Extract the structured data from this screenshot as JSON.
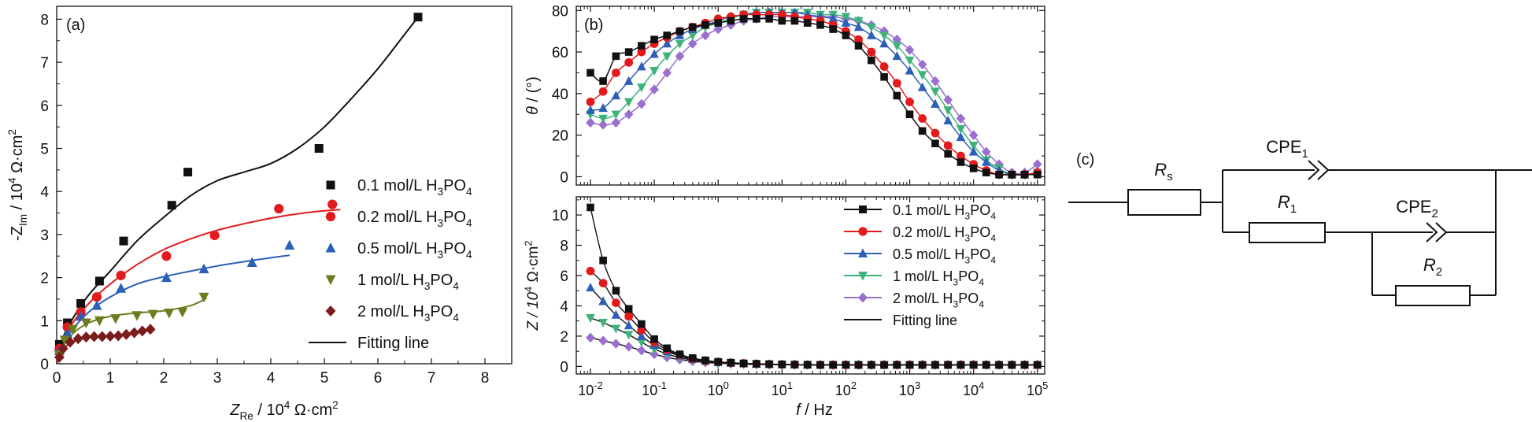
{
  "chart_data": [
    {
      "panel": "a",
      "type": "scatter",
      "panel_label": "(a)",
      "xlabel": "Z_Re / 10^4 Ω·cm^2",
      "ylabel": "-Z_Im / 10^4 Ω·cm^2",
      "xlim": [
        0,
        8.5
      ],
      "ylim": [
        0,
        8.3
      ],
      "xticks": [
        "0",
        "1",
        "2",
        "3",
        "4",
        "5",
        "6",
        "7",
        "8"
      ],
      "yticks": [
        "0",
        "1",
        "2",
        "3",
        "4",
        "5",
        "6",
        "7",
        "8"
      ],
      "series": [
        {
          "name": "0.1 mol/L H3PO4",
          "marker": "square",
          "color": "#111111",
          "x": [
            0.05,
            0.2,
            0.45,
            0.8,
            1.25,
            2.15,
            2.45,
            4.9,
            6.75
          ],
          "y": [
            0.45,
            0.95,
            1.4,
            1.92,
            2.85,
            3.68,
            4.45,
            5.0,
            8.05
          ],
          "fit_x": [
            0,
            0.1,
            0.3,
            0.6,
            1.0,
            1.5,
            2.0,
            2.5,
            3.0,
            3.5,
            4.0,
            4.5,
            5.0,
            5.5,
            6.0,
            6.5,
            6.75
          ],
          "fit_y": [
            0,
            0.55,
            1.05,
            1.6,
            2.15,
            2.85,
            3.4,
            3.9,
            4.25,
            4.45,
            4.65,
            5.0,
            5.5,
            6.15,
            6.85,
            7.65,
            8.05
          ]
        },
        {
          "name": "0.2 mol/L H3PO4",
          "marker": "circle",
          "color": "#e31a1c",
          "x": [
            0.05,
            0.2,
            0.45,
            0.75,
            1.2,
            2.05,
            2.95,
            4.15,
            5.15
          ],
          "y": [
            0.35,
            0.85,
            1.2,
            1.55,
            2.05,
            2.5,
            2.98,
            3.6,
            3.7
          ],
          "fit_x": [
            0,
            0.1,
            0.3,
            0.6,
            1.0,
            1.5,
            2.0,
            2.5,
            3.0,
            3.5,
            4.0,
            4.5,
            5.0,
            5.3
          ],
          "fit_y": [
            0,
            0.5,
            0.95,
            1.4,
            1.85,
            2.3,
            2.65,
            2.9,
            3.1,
            3.25,
            3.38,
            3.48,
            3.55,
            3.58
          ]
        },
        {
          "name": "0.5 mol/L H3PO4",
          "marker": "triangle-up",
          "color": "#2c5fb8",
          "x": [
            0.05,
            0.2,
            0.45,
            0.75,
            1.2,
            2.05,
            2.75,
            3.65,
            4.35
          ],
          "y": [
            0.3,
            0.7,
            1.1,
            1.35,
            1.75,
            2.0,
            2.2,
            2.35,
            2.75
          ],
          "fit_x": [
            0,
            0.1,
            0.3,
            0.6,
            1.0,
            1.5,
            2.0,
            2.5,
            3.0,
            3.5,
            4.0,
            4.35
          ],
          "fit_y": [
            0,
            0.4,
            0.8,
            1.2,
            1.55,
            1.85,
            2.02,
            2.15,
            2.27,
            2.37,
            2.46,
            2.52
          ]
        },
        {
          "name": "1 mol/L H3PO4",
          "marker": "triangle-down",
          "color": "#6b7d1e",
          "x": [
            0.05,
            0.15,
            0.3,
            0.55,
            0.8,
            1.1,
            1.5,
            1.8,
            2.1,
            2.35,
            2.75
          ],
          "y": [
            0.2,
            0.55,
            0.8,
            0.95,
            1.0,
            1.05,
            1.12,
            1.15,
            1.18,
            1.2,
            1.55
          ],
          "fit_x": [
            0,
            0.1,
            0.3,
            0.6,
            1.0,
            1.5,
            2.0,
            2.5,
            2.8
          ],
          "fit_y": [
            0,
            0.35,
            0.7,
            0.95,
            1.1,
            1.18,
            1.23,
            1.35,
            1.52
          ]
        },
        {
          "name": "2 mol/L H3PO4",
          "marker": "diamond",
          "color": "#7b1c1c",
          "x": [
            0.05,
            0.12,
            0.25,
            0.4,
            0.55,
            0.7,
            0.85,
            1.0,
            1.15,
            1.3,
            1.45,
            1.6,
            1.75
          ],
          "y": [
            0.15,
            0.35,
            0.5,
            0.58,
            0.62,
            0.63,
            0.63,
            0.64,
            0.65,
            0.68,
            0.72,
            0.76,
            0.8
          ],
          "fit_x": [
            0,
            0.1,
            0.25,
            0.45,
            0.7,
            1.0,
            1.3,
            1.6,
            1.8
          ],
          "fit_y": [
            0,
            0.3,
            0.48,
            0.58,
            0.62,
            0.64,
            0.67,
            0.74,
            0.8
          ]
        }
      ],
      "legend": [
        "0.1 mol/L H3PO4",
        "0.2 mol/L H3PO4",
        "0.5 mol/L H3PO4",
        "1 mol/L H3PO4",
        "2 mol/L H3PO4",
        "Fitting line"
      ]
    },
    {
      "panel": "b-top",
      "type": "scatter",
      "panel_label": "(b)",
      "xscale": "log",
      "xlim": [
        0.006,
        130000
      ],
      "ylim": [
        -4,
        82
      ],
      "ylabel": "θ / (°)",
      "yticks": [
        "0",
        "20",
        "40",
        "60",
        "80"
      ],
      "f": [
        0.01,
        0.0158,
        0.0251,
        0.0398,
        0.0631,
        0.1,
        0.158,
        0.251,
        0.398,
        0.631,
        1,
        1.58,
        2.51,
        3.98,
        6.31,
        10,
        15.8,
        25.1,
        39.8,
        63.1,
        100,
        158,
        251,
        398,
        631,
        1000,
        1580,
        2510,
        3980,
        6310,
        10000,
        15800,
        25100,
        39800,
        63100,
        100000
      ],
      "series": [
        {
          "name": "0.1 mol/L H3PO4",
          "marker": "square",
          "color": "#111111",
          "values": [
            50,
            46,
            58,
            60,
            63,
            66,
            68,
            70,
            72,
            73,
            74,
            75,
            76,
            76,
            76,
            75,
            75,
            74,
            73,
            71,
            68,
            63,
            56,
            48,
            39,
            30,
            22,
            16,
            11,
            7,
            4,
            2,
            1,
            1,
            1,
            1
          ]
        },
        {
          "name": "0.2 mol/L H3PO4",
          "marker": "circle",
          "color": "#e31a1c",
          "values": [
            36,
            41,
            50,
            55,
            60,
            64,
            67,
            70,
            72,
            74,
            76,
            77,
            78,
            78,
            78,
            78,
            77,
            76,
            75,
            73,
            70,
            66,
            60,
            53,
            45,
            36,
            28,
            21,
            15,
            10,
            6,
            3,
            1,
            1,
            1,
            2
          ]
        },
        {
          "name": "0.5 mol/L H3PO4",
          "marker": "triangle-up",
          "color": "#2c5fb8",
          "values": [
            32,
            33,
            39,
            46,
            53,
            59,
            64,
            68,
            71,
            73,
            75,
            77,
            78,
            79,
            79,
            79,
            79,
            78,
            77,
            76,
            74,
            72,
            68,
            64,
            58,
            51,
            43,
            35,
            27,
            19,
            12,
            7,
            3,
            1,
            1,
            2
          ]
        },
        {
          "name": "1 mol/L H3PO4",
          "marker": "triangle-down",
          "color": "#3db37a",
          "values": [
            30,
            28,
            30,
            36,
            43,
            51,
            58,
            64,
            68,
            72,
            74,
            76,
            78,
            79,
            79,
            79,
            79,
            79,
            78,
            78,
            77,
            75,
            72,
            68,
            63,
            56,
            49,
            41,
            32,
            23,
            15,
            8,
            4,
            1,
            1,
            2
          ]
        },
        {
          "name": "2 mol/L H3PO4",
          "marker": "diamond",
          "color": "#9b6fcf",
          "values": [
            26,
            25,
            26,
            30,
            35,
            42,
            50,
            58,
            64,
            68,
            71,
            73,
            75,
            76,
            77,
            77,
            77,
            77,
            77,
            77,
            76,
            75,
            73,
            70,
            66,
            61,
            54,
            46,
            37,
            28,
            20,
            12,
            6,
            2,
            2,
            6
          ]
        }
      ]
    },
    {
      "panel": "b-bottom",
      "type": "scatter",
      "xscale": "log",
      "xlim": [
        0.006,
        130000
      ],
      "ylim": [
        -0.5,
        11.2
      ],
      "xlabel": "f / Hz",
      "ylabel": "Z / 10^4 Ω·cm^2",
      "yticks": [
        "0",
        "2",
        "4",
        "6",
        "8",
        "10"
      ],
      "xticks": [
        "10^-2",
        "10^-1",
        "10^0",
        "10^1",
        "10^2",
        "10^3",
        "10^4",
        "10^5"
      ],
      "f": [
        0.01,
        0.0158,
        0.0251,
        0.0398,
        0.0631,
        0.1,
        0.158,
        0.251,
        0.398,
        0.631,
        1,
        1.58,
        2.51,
        3.98,
        6.31,
        10,
        15.8,
        25.1,
        39.8,
        63.1,
        100,
        158,
        251,
        398,
        631,
        1000,
        1580,
        2510,
        3980,
        6310,
        10000,
        15800,
        25100,
        39800,
        63100,
        100000
      ],
      "series": [
        {
          "name": "0.1 mol/L H3PO4",
          "marker": "square",
          "color": "#111111",
          "values": [
            10.5,
            7.0,
            5.0,
            3.8,
            2.8,
            1.8,
            1.2,
            0.8,
            0.55,
            0.4,
            0.3,
            0.25,
            0.2,
            0.17,
            0.15,
            0.13,
            0.12,
            0.11,
            0.1,
            0.1,
            0.1,
            0.1,
            0.1,
            0.1,
            0.1,
            0.1,
            0.1,
            0.1,
            0.1,
            0.1,
            0.1,
            0.1,
            0.1,
            0.1,
            0.1,
            0.1
          ]
        },
        {
          "name": "0.2 mol/L H3PO4",
          "marker": "circle",
          "color": "#e31a1c",
          "values": [
            6.3,
            5.5,
            4.2,
            3.3,
            2.4,
            1.6,
            1.1,
            0.75,
            0.5,
            0.38,
            0.3,
            0.24,
            0.2,
            0.17,
            0.15,
            0.13,
            0.12,
            0.11,
            0.1,
            0.1,
            0.1,
            0.1,
            0.1,
            0.1,
            0.1,
            0.1,
            0.1,
            0.1,
            0.1,
            0.1,
            0.1,
            0.1,
            0.1,
            0.1,
            0.1,
            0.1
          ]
        },
        {
          "name": "0.5 mol/L H3PO4",
          "marker": "triangle-up",
          "color": "#2c5fb8",
          "values": [
            5.2,
            4.3,
            3.4,
            2.7,
            2.0,
            1.4,
            1.0,
            0.7,
            0.48,
            0.36,
            0.28,
            0.23,
            0.19,
            0.16,
            0.14,
            0.13,
            0.12,
            0.11,
            0.1,
            0.1,
            0.1,
            0.1,
            0.1,
            0.1,
            0.1,
            0.1,
            0.1,
            0.1,
            0.1,
            0.1,
            0.1,
            0.1,
            0.1,
            0.1,
            0.1,
            0.1
          ]
        },
        {
          "name": "1 mol/L H3PO4",
          "marker": "triangle-down",
          "color": "#3db37a",
          "values": [
            3.2,
            2.9,
            2.5,
            2.1,
            1.6,
            1.15,
            0.82,
            0.58,
            0.42,
            0.32,
            0.25,
            0.2,
            0.17,
            0.15,
            0.13,
            0.12,
            0.11,
            0.1,
            0.1,
            0.1,
            0.1,
            0.1,
            0.1,
            0.1,
            0.1,
            0.1,
            0.1,
            0.1,
            0.1,
            0.1,
            0.1,
            0.1,
            0.1,
            0.1,
            0.1,
            0.1
          ]
        },
        {
          "name": "2 mol/L H3PO4",
          "marker": "diamond",
          "color": "#9b6fcf",
          "values": [
            1.9,
            1.7,
            1.5,
            1.3,
            1.05,
            0.8,
            0.6,
            0.45,
            0.34,
            0.26,
            0.21,
            0.17,
            0.15,
            0.13,
            0.12,
            0.11,
            0.1,
            0.1,
            0.1,
            0.1,
            0.1,
            0.1,
            0.1,
            0.1,
            0.1,
            0.1,
            0.1,
            0.1,
            0.1,
            0.1,
            0.1,
            0.1,
            0.1,
            0.1,
            0.1,
            0.1
          ]
        }
      ],
      "legend": [
        "0.1 mol/L H3PO4",
        "0.2 mol/L H3PO4",
        "0.5 mol/L H3PO4",
        "1 mol/L H3PO4",
        "2 mol/L H3PO4",
        "Fitting line"
      ]
    }
  ],
  "circuit": {
    "panel_label": "(c)",
    "labels": [
      "Rs",
      "CPE1",
      "R1",
      "CPE2",
      "R2"
    ]
  }
}
